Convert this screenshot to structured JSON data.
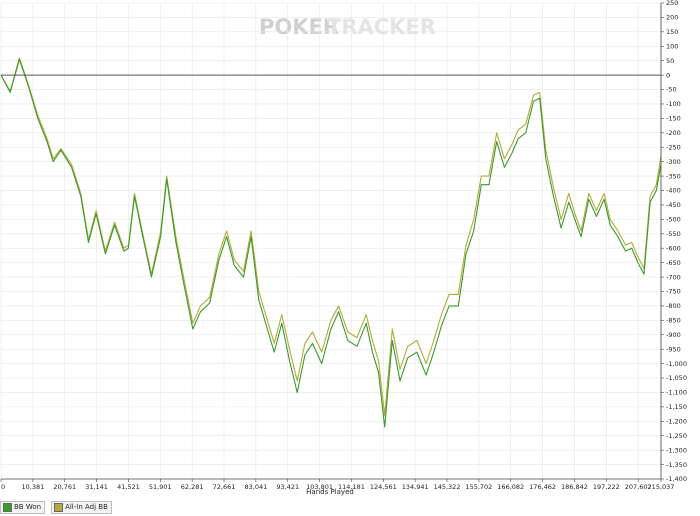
{
  "app": {
    "watermark_left": "POKER",
    "watermark_right": "TRACKER"
  },
  "colors": {
    "bb_won": "#3a9a2c",
    "all_in_adj": "#b4a93a",
    "zero_line": "#555555",
    "grid": "#e6e6e6"
  },
  "chart_data": {
    "type": "line",
    "xlabel": "Hands Played",
    "ylabel": "",
    "xlim": [
      0,
      215037
    ],
    "ylim": [
      -1400,
      250
    ],
    "y_axis_side": "right",
    "grid": true,
    "legend_position": "bottom-left",
    "x_tick_labels": [
      "0",
      "10,381",
      "20,761",
      "31,141",
      "41,521",
      "51,901",
      "62,281",
      "72,661",
      "83,041",
      "93,421",
      "103,801",
      "114,181",
      "124,561",
      "134,941",
      "145,322",
      "155,702",
      "166,082",
      "176,462",
      "186,842",
      "197,222",
      "207,602",
      "215,037"
    ],
    "x_tick_values": [
      0,
      10381,
      20761,
      31141,
      41521,
      51901,
      62281,
      72661,
      83041,
      93421,
      103801,
      114181,
      124561,
      134941,
      145322,
      155702,
      166082,
      176462,
      186842,
      197222,
      207602,
      215037
    ],
    "y_tick_labels": [
      "250",
      "200",
      "150",
      "100",
      "50",
      "0",
      "-50",
      "-100",
      "-150",
      "-200",
      "-250",
      "-300",
      "-350",
      "-400",
      "-450",
      "-500",
      "-550",
      "-600",
      "-650",
      "-700",
      "-750",
      "-800",
      "-850",
      "-900",
      "-950",
      "-1,000",
      "-1,050",
      "-1,100",
      "-1,150",
      "-1,200",
      "-1,250",
      "-1,300",
      "-1,350",
      "-1,400"
    ],
    "y_tick_values": [
      250,
      200,
      150,
      100,
      50,
      0,
      -50,
      -100,
      -150,
      -200,
      -250,
      -300,
      -350,
      -400,
      -450,
      -500,
      -550,
      -600,
      -650,
      -700,
      -750,
      -800,
      -850,
      -900,
      -950,
      -1000,
      -1050,
      -1100,
      -1150,
      -1200,
      -1250,
      -1300,
      -1350,
      -1400
    ],
    "series": [
      {
        "name": "BB Won",
        "color": "#3a9a2c",
        "x": [
          0,
          3000,
          6000,
          9000,
          12000,
          15000,
          17000,
          19500,
          23000,
          26000,
          28500,
          31000,
          34000,
          37000,
          40000,
          41500,
          43500,
          46000,
          49000,
          52000,
          54000,
          57000,
          59500,
          62500,
          65000,
          68000,
          71000,
          73500,
          76000,
          79000,
          81500,
          84000,
          86500,
          89000,
          91500,
          94000,
          96500,
          99000,
          101500,
          104500,
          107500,
          110000,
          113000,
          116000,
          119000,
          121000,
          123000,
          125000,
          127500,
          130000,
          132500,
          135500,
          138500,
          141000,
          143500,
          146000,
          149000,
          151500,
          154000,
          156500,
          159000,
          161500,
          164000,
          166500,
          168500,
          171000,
          173500,
          175500,
          177500,
          180000,
          182500,
          185000,
          187000,
          189000,
          191500,
          194000,
          196500,
          198500,
          201000,
          203500,
          205500,
          207500,
          209500,
          211500,
          213500,
          215037
        ],
        "y": [
          0,
          -60,
          55,
          -40,
          -150,
          -230,
          -300,
          -260,
          -320,
          -420,
          -580,
          -480,
          -620,
          -520,
          -610,
          -600,
          -420,
          -550,
          -700,
          -560,
          -360,
          -580,
          -720,
          -880,
          -820,
          -790,
          -640,
          -560,
          -660,
          -700,
          -560,
          -780,
          -870,
          -960,
          -860,
          -990,
          -1100,
          -970,
          -930,
          -1000,
          -880,
          -820,
          -920,
          -940,
          -860,
          -960,
          -1030,
          -1220,
          -920,
          -1060,
          -980,
          -960,
          -1040,
          -960,
          -870,
          -800,
          -800,
          -620,
          -540,
          -380,
          -380,
          -230,
          -320,
          -270,
          -220,
          -200,
          -90,
          -80,
          -290,
          -420,
          -530,
          -440,
          -500,
          -560,
          -430,
          -490,
          -430,
          -520,
          -560,
          -610,
          -600,
          -650,
          -690,
          -440,
          -400,
          -310
        ]
      },
      {
        "name": "All-In Adj BB",
        "color": "#b4a93a",
        "x": [
          0,
          3000,
          6000,
          9000,
          12000,
          15000,
          17000,
          19500,
          23000,
          26000,
          28500,
          31000,
          34000,
          37000,
          40000,
          41500,
          43500,
          46000,
          49000,
          52000,
          54000,
          57000,
          59500,
          62500,
          65000,
          68000,
          71000,
          73500,
          76000,
          79000,
          81500,
          84000,
          86500,
          89000,
          91500,
          94000,
          96500,
          99000,
          101500,
          104500,
          107500,
          110000,
          113000,
          116000,
          119000,
          121000,
          123000,
          125000,
          127500,
          130000,
          132500,
          135500,
          138500,
          141000,
          143500,
          146000,
          149000,
          151500,
          154000,
          156500,
          159000,
          161500,
          164000,
          166500,
          168500,
          171000,
          173500,
          175500,
          177500,
          180000,
          182500,
          185000,
          187000,
          189000,
          191500,
          194000,
          196500,
          198500,
          201000,
          203500,
          205500,
          207500,
          209500,
          211500,
          213500,
          215037
        ],
        "y": [
          0,
          -55,
          60,
          -35,
          -140,
          -220,
          -290,
          -255,
          -310,
          -410,
          -570,
          -470,
          -610,
          -510,
          -600,
          -590,
          -410,
          -540,
          -690,
          -545,
          -350,
          -560,
          -700,
          -860,
          -800,
          -770,
          -620,
          -540,
          -640,
          -680,
          -540,
          -750,
          -840,
          -930,
          -830,
          -950,
          -1060,
          -930,
          -890,
          -960,
          -850,
          -800,
          -890,
          -910,
          -830,
          -920,
          -990,
          -1180,
          -880,
          -1020,
          -940,
          -920,
          -1000,
          -920,
          -830,
          -760,
          -760,
          -590,
          -500,
          -350,
          -350,
          -200,
          -290,
          -240,
          -190,
          -170,
          -70,
          -60,
          -260,
          -390,
          -500,
          -410,
          -480,
          -540,
          -410,
          -470,
          -410,
          -500,
          -540,
          -590,
          -580,
          -630,
          -670,
          -420,
          -380,
          -280
        ]
      }
    ]
  },
  "legend": {
    "items": [
      {
        "label": "BB Won",
        "color": "#3a9a2c"
      },
      {
        "label": "All-In Adj BB",
        "color": "#b4a93a"
      }
    ]
  }
}
